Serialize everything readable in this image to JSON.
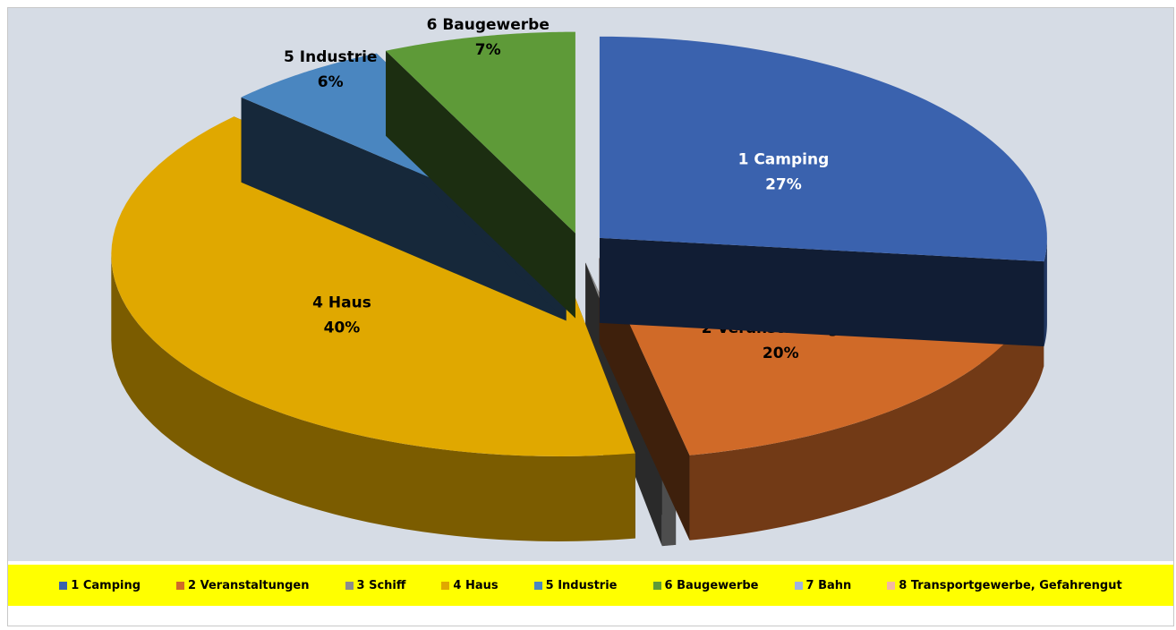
{
  "chart_data": {
    "type": "pie",
    "categories": [
      "1 Camping",
      "2 Veranstaltungen",
      "3 Schiff",
      "4 Haus",
      "5 Industrie",
      "6 Baugewerbe",
      "7 Bahn",
      "8 Transportgewerbe, Gefahrengut"
    ],
    "values": [
      27,
      20,
      0.5,
      40,
      6,
      7,
      0,
      0
    ],
    "value_labels": [
      "27%",
      "20%",
      null,
      "40%",
      "6%",
      "7%",
      null,
      null
    ],
    "colors": [
      "#3a62ae",
      "#d06a28",
      "#8c8c8c",
      "#e0a800",
      "#4a86c0",
      "#5e9a38",
      "#9fb2e0",
      "#f4b8a0"
    ]
  }
}
